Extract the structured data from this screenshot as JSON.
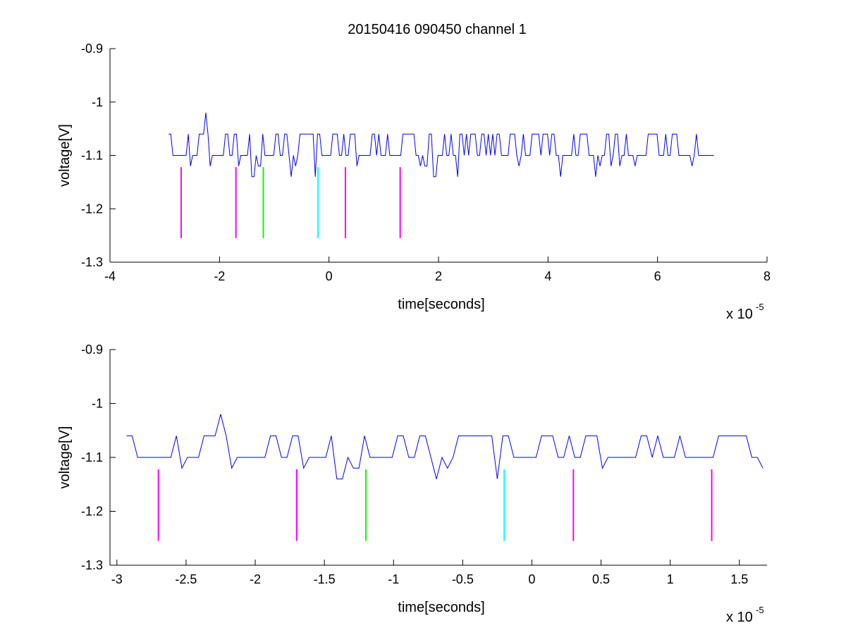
{
  "title": "20150416 090450 channel 1",
  "colors": {
    "signal": "#0000ff",
    "magenta": "#ff00ff",
    "green": "#00ff00",
    "cyan": "#00ffff",
    "axes": "#000000",
    "background": "#ffffff"
  },
  "chart_data": [
    {
      "type": "line",
      "title": "20150416 090450 channel 1",
      "xlabel": "time[seconds]",
      "ylabel": "voltage[V]",
      "x_exponent_label": "x 10",
      "x_exponent": "-5",
      "xlim": [
        -4,
        8
      ],
      "ylim": [
        -1.3,
        -0.9
      ],
      "xticks": [
        -4,
        -2,
        0,
        2,
        4,
        6,
        8
      ],
      "xtick_labels": [
        "-4",
        "-2",
        "0",
        "2",
        "4",
        "6",
        "8"
      ],
      "yticks": [
        -0.9,
        -1.0,
        -1.1,
        -1.2,
        -1.3
      ],
      "ytick_labels": [
        "-0.9",
        "-1",
        "-1.1",
        "-1.2",
        "-1.3"
      ],
      "grid": false,
      "series": [
        {
          "kind": "signal",
          "color": "#0000ff",
          "x_range": [
            -2.93,
            7.03
          ],
          "baseline": -1.1,
          "levels": [
            -1.02,
            -1.06,
            -1.1,
            -1.12,
            -1.14
          ],
          "spike": {
            "x": -2.27,
            "y": -1.02
          }
        }
      ],
      "markers": [
        {
          "x": -2.7,
          "y_range": [
            -1.255,
            -1.122
          ],
          "color": "#ff00ff"
        },
        {
          "x": -1.7,
          "y_range": [
            -1.255,
            -1.122
          ],
          "color": "#ff00ff"
        },
        {
          "x": -1.2,
          "y_range": [
            -1.255,
            -1.122
          ],
          "color": "#00ff00"
        },
        {
          "x": -0.2,
          "y_range": [
            -1.255,
            -1.122
          ],
          "color": "#00ffff"
        },
        {
          "x": 0.3,
          "y_range": [
            -1.255,
            -1.122
          ],
          "color": "#ff00ff"
        },
        {
          "x": 1.3,
          "y_range": [
            -1.255,
            -1.122
          ],
          "color": "#ff00ff"
        }
      ]
    },
    {
      "type": "line",
      "title": "",
      "xlabel": "time[seconds]",
      "ylabel": "voltage[V]",
      "x_exponent_label": "x 10",
      "x_exponent": "-5",
      "xlim": [
        -3.05,
        1.7
      ],
      "ylim": [
        -1.3,
        -0.9
      ],
      "xticks": [
        -3,
        -2.5,
        -2,
        -1.5,
        -1,
        -0.5,
        0,
        0.5,
        1,
        1.5
      ],
      "xtick_labels": [
        "-3",
        "-2.5",
        "-2",
        "-1.5",
        "-1",
        "-0.5",
        "0",
        "0.5",
        "1",
        "1.5"
      ],
      "yticks": [
        -0.9,
        -1.0,
        -1.1,
        -1.2,
        -1.3
      ],
      "ytick_labels": [
        "-0.9",
        "-1",
        "-1.1",
        "-1.2",
        "-1.3"
      ],
      "grid": false,
      "series": [
        {
          "kind": "signal",
          "color": "#0000ff",
          "x_range": [
            -2.93,
            1.7
          ],
          "baseline": -1.1,
          "levels": [
            -1.02,
            -1.06,
            -1.1,
            -1.12,
            -1.14
          ],
          "spike": {
            "x": -2.27,
            "y": -1.02
          }
        }
      ],
      "markers": [
        {
          "x": -2.7,
          "y_range": [
            -1.255,
            -1.122
          ],
          "color": "#ff00ff"
        },
        {
          "x": -1.7,
          "y_range": [
            -1.255,
            -1.122
          ],
          "color": "#ff00ff"
        },
        {
          "x": -1.2,
          "y_range": [
            -1.255,
            -1.122
          ],
          "color": "#00ff00"
        },
        {
          "x": -0.2,
          "y_range": [
            -1.255,
            -1.122
          ],
          "color": "#00ffff"
        },
        {
          "x": 0.3,
          "y_range": [
            -1.255,
            -1.122
          ],
          "color": "#ff00ff"
        },
        {
          "x": 1.3,
          "y_range": [
            -1.255,
            -1.122
          ],
          "color": "#ff00ff"
        }
      ]
    }
  ]
}
